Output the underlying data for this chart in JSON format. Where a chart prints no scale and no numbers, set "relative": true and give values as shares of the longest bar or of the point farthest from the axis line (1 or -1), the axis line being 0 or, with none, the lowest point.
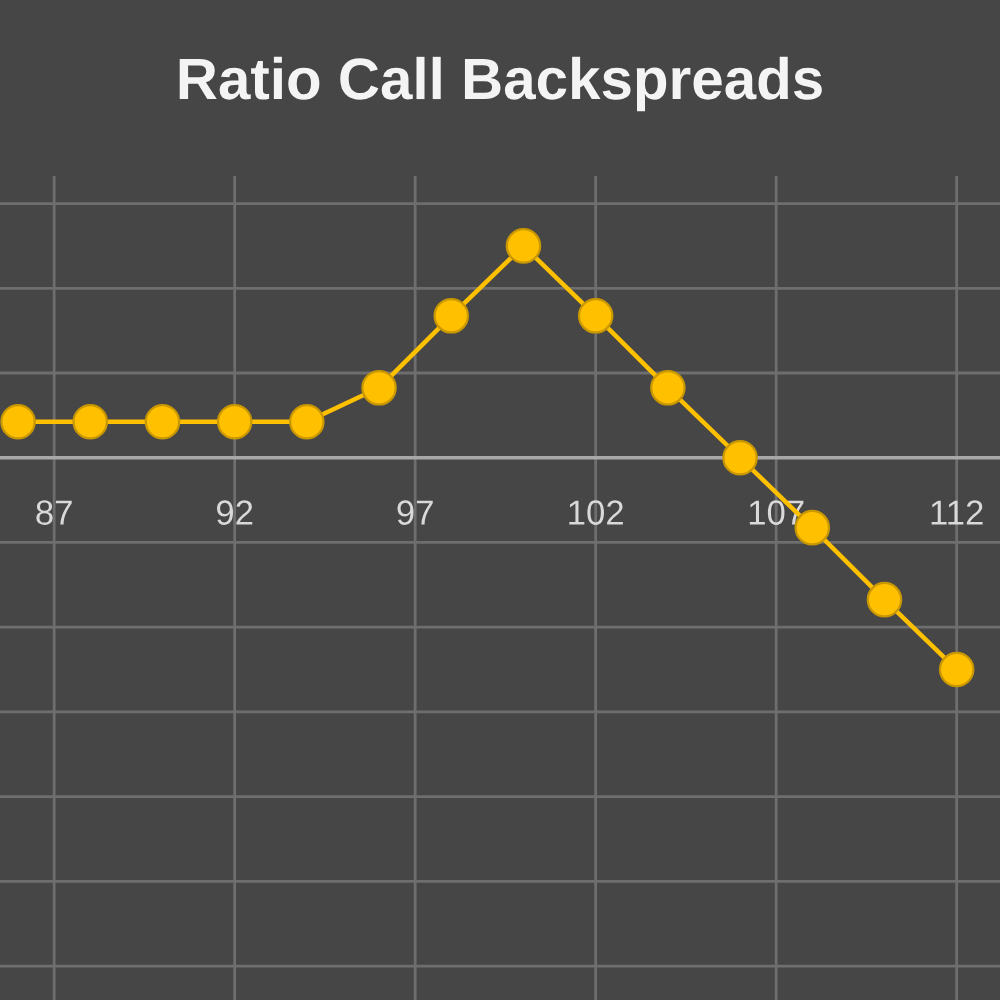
{
  "chart_data": {
    "type": "line",
    "title": "Ratio Call Backspreads",
    "x": [
      86,
      88,
      90,
      92,
      94,
      96,
      98,
      100,
      102,
      104,
      106,
      108,
      110,
      112
    ],
    "series": [
      {
        "color": "#ffc000",
        "values": [
          0.17,
          0.17,
          0.17,
          0.17,
          0.17,
          0.33,
          0.67,
          1,
          0.67,
          0.33,
          0,
          -0.33,
          -0.67,
          -1
        ]
      }
    ],
    "relative": true,
    "xlim": [
      85.5,
      113.2
    ],
    "xticks": [
      87,
      92,
      97,
      102,
      107,
      112
    ],
    "grid": true,
    "marker": "circle",
    "line_style": "solid"
  }
}
